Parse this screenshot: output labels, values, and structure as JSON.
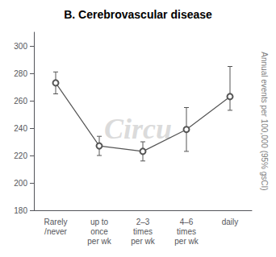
{
  "chart_data": {
    "type": "line",
    "title": "B. Cerebrovascular disease",
    "categories": [
      "Rarely\n/never",
      "up to\nonce\nper wk",
      "2–3\ntimes\nper wk",
      "4–6\ntimes\nper wk",
      "daily"
    ],
    "series": [
      {
        "values": [
          273,
          227,
          223,
          239,
          263
        ],
        "error_lower": [
          8,
          7,
          7,
          16,
          10
        ],
        "error_upper": [
          8,
          7,
          7,
          16,
          22
        ],
        "color": "#555555",
        "marker": "circle"
      }
    ],
    "ylim": [
      180,
      310
    ],
    "yticks": [
      180,
      200,
      220,
      240,
      260,
      280,
      300
    ],
    "y2_label": "Annual events per 100,000 (95% gsCI)",
    "annotations": [
      "Circu"
    ],
    "grid": false
  }
}
